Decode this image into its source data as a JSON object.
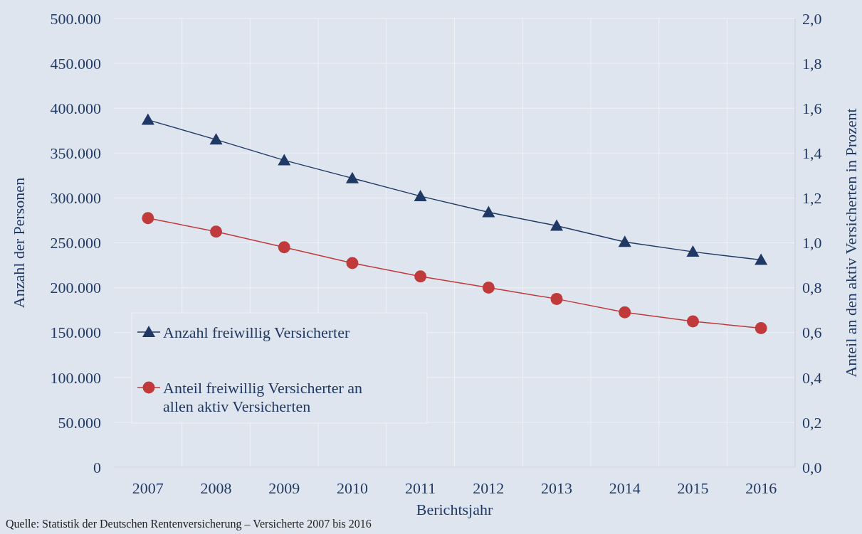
{
  "chart_data": {
    "type": "line",
    "xlabel": "Berichtsjahr",
    "ylabel": "Anzahl der Personen",
    "y2label": "Anteil an den aktiv Versicherten in Prozent",
    "categories": [
      "2007",
      "2008",
      "2009",
      "2010",
      "2011",
      "2012",
      "2013",
      "2014",
      "2015",
      "2016"
    ],
    "series": [
      {
        "name": "Anzahl freiwillig Versicherter",
        "color": "#1f3864",
        "marker": "triangle",
        "values": [
          387000,
          365000,
          342000,
          322000,
          302000,
          284000,
          269000,
          251000,
          240000,
          231000
        ]
      },
      {
        "name": "Anteil freiwillig Versicherter an allen aktiv Versicherten",
        "color": "#c0393b",
        "marker": "circle",
        "axis": "y2",
        "values": [
          1.11,
          1.05,
          0.98,
          0.91,
          0.85,
          0.8,
          0.75,
          0.69,
          0.65,
          0.62
        ]
      }
    ],
    "ylim": [
      0,
      500000
    ],
    "yticks": [
      {
        "value": 0,
        "label": "0"
      },
      {
        "value": 50000,
        "label": "50.000"
      },
      {
        "value": 100000,
        "label": "100.000"
      },
      {
        "value": 150000,
        "label": "150.000"
      },
      {
        "value": 200000,
        "label": "200.000"
      },
      {
        "value": 250000,
        "label": "250.000"
      },
      {
        "value": 300000,
        "label": "300.000"
      },
      {
        "value": 350000,
        "label": "350.000"
      },
      {
        "value": 400000,
        "label": "400.000"
      },
      {
        "value": 450000,
        "label": "450.000"
      },
      {
        "value": 500000,
        "label": "500.000"
      }
    ],
    "y2lim": [
      0,
      2
    ],
    "y2ticks": [
      {
        "value": 0,
        "label": "0,0"
      },
      {
        "value": 0.2,
        "label": "0,2"
      },
      {
        "value": 0.4,
        "label": "0,4"
      },
      {
        "value": 0.6,
        "label": "0,6"
      },
      {
        "value": 0.8,
        "label": "0,8"
      },
      {
        "value": 1,
        "label": "1,0"
      },
      {
        "value": 1.2,
        "label": "1,2"
      },
      {
        "value": 1.4,
        "label": "1,4"
      },
      {
        "value": 1.6,
        "label": "1,6"
      },
      {
        "value": 1.8,
        "label": "1,8"
      },
      {
        "value": 2,
        "label": "2,0"
      }
    ],
    "grid": true,
    "legend": "bottom left",
    "line_style": "solid",
    "annotations": [
      "Quelle: Statistik der Deutschen Rentenversicherung – Versicherte 2007 bis 2016"
    ]
  }
}
